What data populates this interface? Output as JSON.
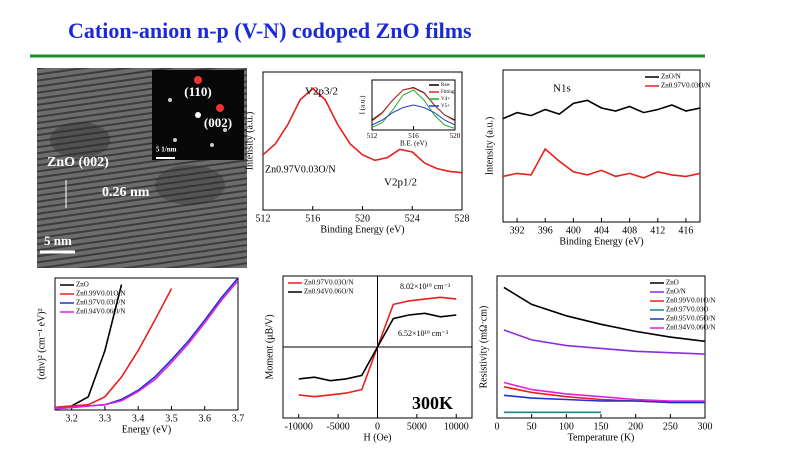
{
  "title": "Cation-anion n-p (V-N) codoped ZnO films",
  "tem": {
    "labels": [
      "(110)",
      "(002)",
      "5 1/nm",
      "ZnO (002)",
      "0.26 nm",
      "5 nm"
    ]
  },
  "chart_data": [
    {
      "type": "line",
      "xlabel": "Binding Energy (eV)",
      "ylabel": "Intensity (a.u.)",
      "annotations": [
        "V2p3/2",
        "Zn0.97V0.03O/N",
        "V2p1/2"
      ],
      "x": [
        512,
        513,
        514,
        515,
        516,
        517,
        518,
        519,
        520,
        521,
        522,
        523,
        524,
        525,
        526,
        527,
        528
      ],
      "series": [
        {
          "name": "Zn0.97V0.03O/N",
          "color": "#e8201c",
          "values": [
            40,
            48,
            62,
            80,
            88,
            80,
            62,
            48,
            40,
            36,
            38,
            44,
            42,
            34,
            30,
            28,
            27
          ]
        }
      ],
      "xlim": [
        512,
        528
      ],
      "xticks": [
        512,
        516,
        520,
        524,
        528
      ],
      "ylim": [
        0,
        100
      ],
      "legend": "none"
    },
    {
      "type": "line",
      "xlabel": "B.E. (eV)",
      "ylabel": "I (a.u.)",
      "annotations": [],
      "x": [
        512,
        513,
        514,
        515,
        516,
        517,
        518,
        519,
        520
      ],
      "series": [
        {
          "name": "Raw",
          "color": "#000000",
          "values": [
            20,
            35,
            60,
            80,
            85,
            75,
            50,
            30,
            20
          ]
        },
        {
          "name": "Fitting",
          "color": "#c0392b",
          "values": [
            18,
            34,
            60,
            80,
            84,
            74,
            50,
            30,
            18
          ]
        },
        {
          "name": "V4+",
          "color": "#1fae2e",
          "values": [
            5,
            15,
            40,
            70,
            80,
            60,
            30,
            10,
            3
          ]
        },
        {
          "name": "V5+",
          "color": "#2040d0",
          "values": [
            10,
            20,
            35,
            45,
            50,
            45,
            35,
            20,
            10
          ]
        }
      ],
      "xlim": [
        512,
        520
      ],
      "xticks": [
        512,
        516,
        520
      ],
      "ylim": [
        0,
        100
      ],
      "legend": "upper right"
    },
    {
      "type": "line",
      "xlabel": "Binding Energy (eV)",
      "ylabel": "Intensity (a.u.)",
      "annotations": [
        "N1s"
      ],
      "x": [
        390,
        392,
        394,
        396,
        398,
        400,
        402,
        404,
        406,
        408,
        410,
        412,
        414,
        416,
        418
      ],
      "series": [
        {
          "name": "ZnO/N",
          "color": "#000000",
          "values": [
            68,
            72,
            70,
            74,
            71,
            78,
            80,
            75,
            73,
            76,
            72,
            74,
            77,
            73,
            75
          ]
        },
        {
          "name": "Zn0.97V0.03O/N",
          "color": "#e8201c",
          "values": [
            30,
            32,
            31,
            48,
            40,
            33,
            31,
            34,
            30,
            32,
            29,
            33,
            31,
            30,
            32
          ]
        }
      ],
      "xlim": [
        390,
        418
      ],
      "xticks": [
        392,
        396,
        400,
        404,
        408,
        412,
        416
      ],
      "ylim": [
        0,
        100
      ],
      "legend": "upper right"
    },
    {
      "type": "line",
      "xlabel": "Energy (eV)",
      "ylabel": "(αhν)² (cm⁻¹ eV)²",
      "annotations": [],
      "x": [
        3.15,
        3.2,
        3.25,
        3.3,
        3.35,
        3.4,
        3.45,
        3.5,
        3.55,
        3.6,
        3.65,
        3.7
      ],
      "series": [
        {
          "name": "ZnO",
          "color": "#000000",
          "values": [
            2,
            3,
            10,
            45,
            95,
            null,
            null,
            null,
            null,
            null,
            null,
            null
          ]
        },
        {
          "name": "Zn0.99V0.01O/N",
          "color": "#e8201c",
          "values": [
            2,
            3,
            4,
            10,
            25,
            45,
            68,
            92,
            null,
            null,
            null,
            null
          ]
        },
        {
          "name": "Zn0.97V0.03O/N",
          "color": "#2030d0",
          "values": [
            1,
            2,
            3,
            4,
            8,
            15,
            25,
            38,
            52,
            68,
            85,
            100
          ]
        },
        {
          "name": "Zn0.94V0.06O/N",
          "color": "#e020e0",
          "values": [
            1,
            2,
            3,
            4,
            7,
            14,
            23,
            36,
            50,
            66,
            83,
            98
          ]
        }
      ],
      "xlim": [
        3.15,
        3.7
      ],
      "xticks": [
        3.2,
        3.3,
        3.4,
        3.5,
        3.6,
        3.7
      ],
      "ylim": [
        0,
        100
      ],
      "legend": "upper left"
    },
    {
      "type": "line",
      "xlabel": "H (Oe)",
      "ylabel": "Moment (μB/V)",
      "annotations": [
        "8.02×10¹⁹ cm⁻³",
        "6.52×10¹⁹ cm⁻³",
        "300K"
      ],
      "x": [
        -10000,
        -8000,
        -6000,
        -4000,
        -2000,
        0,
        2000,
        4000,
        6000,
        8000,
        10000
      ],
      "series": [
        {
          "name": "Zn0.97V0.03O/N",
          "color": "#e8201c",
          "values": [
            -0.27,
            -0.28,
            -0.27,
            -0.26,
            -0.24,
            0,
            0.24,
            0.26,
            0.27,
            0.28,
            0.27
          ]
        },
        {
          "name": "Zn0.94V0.06O/N",
          "color": "#000000",
          "values": [
            -0.18,
            -0.17,
            -0.19,
            -0.18,
            -0.16,
            0,
            0.16,
            0.18,
            0.19,
            0.17,
            0.18
          ]
        }
      ],
      "xlim": [
        -12000,
        12000
      ],
      "xticks": [
        -10000,
        -5000,
        0,
        5000,
        10000
      ],
      "ylim": [
        -0.4,
        0.4
      ],
      "legend": "upper left"
    },
    {
      "type": "line",
      "xlabel": "Temperature (K)",
      "ylabel": "Resistivity (mΩ·cm)",
      "annotations": [],
      "x": [
        10,
        50,
        100,
        150,
        200,
        250,
        300
      ],
      "series": [
        {
          "name": "ZnO",
          "color": "#000000",
          "values": [
            92,
            80,
            72,
            66,
            61,
            57,
            54
          ]
        },
        {
          "name": "ZnO/N",
          "color": "#8a2be2",
          "values": [
            62,
            55,
            51,
            49,
            47,
            46,
            45
          ]
        },
        {
          "name": "Zn0.99V0.01O/N",
          "color": "#e8201c",
          "values": [
            22,
            18,
            15,
            13,
            12,
            11,
            11
          ]
        },
        {
          "name": "Zn0.97V0.03O",
          "color": "#108a80",
          "values": [
            4,
            4,
            4,
            4,
            null,
            null,
            null
          ]
        },
        {
          "name": "Zn0.95V0.05O/N",
          "color": "#2030d0",
          "values": [
            16,
            14,
            13,
            12,
            12,
            11,
            11
          ]
        },
        {
          "name": "Zn0.94V0.06O/N",
          "color": "#e020e0",
          "values": [
            25,
            20,
            17,
            15,
            13,
            12,
            12
          ]
        }
      ],
      "xlim": [
        0,
        300
      ],
      "xticks": [
        0,
        50,
        100,
        150,
        200,
        250,
        300
      ],
      "ylim": [
        0,
        100
      ],
      "legend": "upper right"
    }
  ]
}
